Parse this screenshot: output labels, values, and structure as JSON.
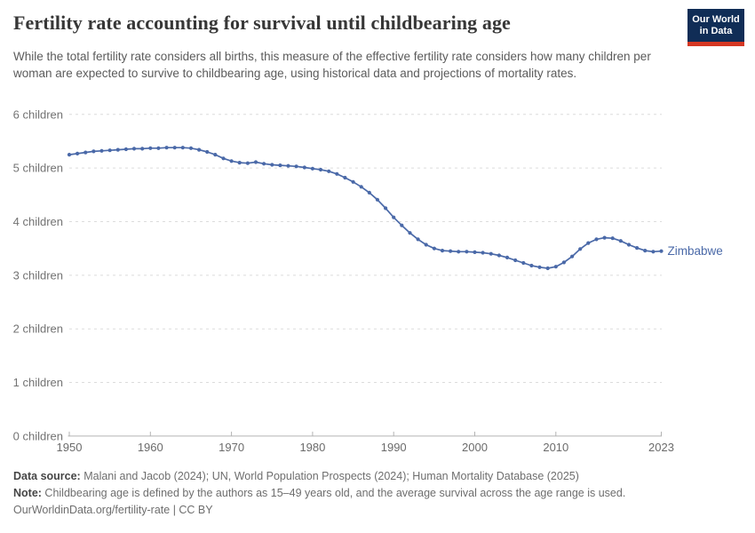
{
  "header": {
    "title": "Fertility rate accounting for survival until childbearing age",
    "subtitle": "While the total fertility rate considers all births, this measure of the effective fertility rate considers how many children per woman are expected to survive to childbearing age, using historical data and projections of mortality rates.",
    "logo": {
      "line1": "Our World",
      "line2": "in Data",
      "bg_color": "#102d56",
      "accent_color": "#d53723"
    }
  },
  "chart_data": {
    "type": "line",
    "title": "Fertility rate accounting for survival until childbearing age",
    "xlabel": "",
    "ylabel": "",
    "xlim": [
      1950,
      2023
    ],
    "ylim": [
      0,
      6
    ],
    "grid": "horizontal-dashed",
    "legend_position": "end-of-line",
    "x_ticks": [
      1950,
      1960,
      1970,
      1980,
      1990,
      2000,
      2010,
      2023
    ],
    "x_tick_labels": [
      "1950",
      "1960",
      "1970",
      "1980",
      "1990",
      "2000",
      "2010",
      "2023"
    ],
    "y_ticks": [
      0,
      1,
      2,
      3,
      4,
      5,
      6
    ],
    "y_tick_labels": [
      "0 children",
      "1 children",
      "2 children",
      "3 children",
      "4 children",
      "5 children",
      "6 children"
    ],
    "x": [
      1950,
      1951,
      1952,
      1953,
      1954,
      1955,
      1956,
      1957,
      1958,
      1959,
      1960,
      1961,
      1962,
      1963,
      1964,
      1965,
      1966,
      1967,
      1968,
      1969,
      1970,
      1971,
      1972,
      1973,
      1974,
      1975,
      1976,
      1977,
      1978,
      1979,
      1980,
      1981,
      1982,
      1983,
      1984,
      1985,
      1986,
      1987,
      1988,
      1989,
      1990,
      1991,
      1992,
      1993,
      1994,
      1995,
      1996,
      1997,
      1998,
      1999,
      2000,
      2001,
      2002,
      2003,
      2004,
      2005,
      2006,
      2007,
      2008,
      2009,
      2010,
      2011,
      2012,
      2013,
      2014,
      2015,
      2016,
      2017,
      2018,
      2019,
      2020,
      2021,
      2022,
      2023
    ],
    "series": [
      {
        "name": "Zimbabwe",
        "color": "#4a69a8",
        "values": [
          5.25,
          5.27,
          5.29,
          5.31,
          5.32,
          5.33,
          5.34,
          5.35,
          5.36,
          5.36,
          5.37,
          5.37,
          5.38,
          5.38,
          5.38,
          5.37,
          5.34,
          5.3,
          5.25,
          5.18,
          5.13,
          5.1,
          5.09,
          5.11,
          5.08,
          5.06,
          5.05,
          5.04,
          5.03,
          5.01,
          4.99,
          4.97,
          4.94,
          4.89,
          4.82,
          4.74,
          4.65,
          4.54,
          4.41,
          4.25,
          4.08,
          3.93,
          3.79,
          3.67,
          3.57,
          3.5,
          3.46,
          3.45,
          3.44,
          3.44,
          3.43,
          3.42,
          3.4,
          3.37,
          3.33,
          3.28,
          3.23,
          3.18,
          3.15,
          3.13,
          3.16,
          3.24,
          3.35,
          3.49,
          3.6,
          3.67,
          3.7,
          3.69,
          3.64,
          3.57,
          3.51,
          3.46,
          3.44,
          3.45
        ]
      }
    ],
    "colors": {
      "gridline": "#dcdcdc",
      "axis": "#b3b3b3",
      "y_tick_label": "#737373",
      "x_tick_label": "#6b6b6b"
    }
  },
  "footer": {
    "datasource_label": "Data source:",
    "datasource_text": " Malani and Jacob (2024); UN, World Population Prospects (2024); Human Mortality Database (2025)",
    "note_label": "Note:",
    "note_text": " Childbearing age is defined by the authors as 15–49 years old, and the average survival across the age range is used.",
    "url_text": "OurWorldinData.org/fertility-rate | CC BY"
  }
}
